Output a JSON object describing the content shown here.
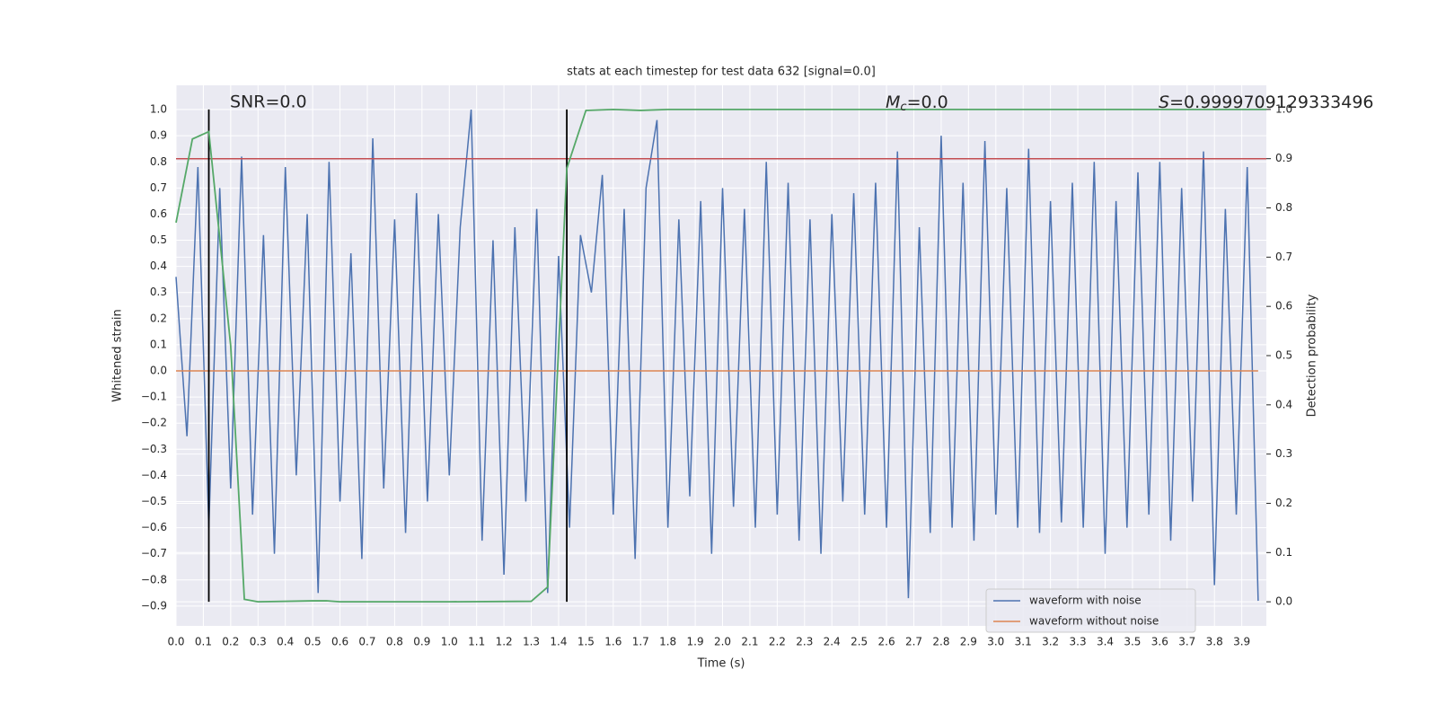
{
  "chart_data": {
    "type": "line",
    "title": "stats at each timestep for test data 632 [signal=0.0]",
    "xlabel": "Time (s)",
    "ylabel": "Whitened strain",
    "y2label": "Detection probability",
    "grid": true,
    "legend_loc": "lower right",
    "xlim": [
      0,
      3.99
    ],
    "ylim": [
      -0.976,
      1.093
    ],
    "y2lim": [
      -0.049,
      1.049
    ],
    "xticks": [
      {
        "value": 0,
        "label": "0.0"
      },
      0.1,
      0.2,
      0.3,
      0.4,
      0.5,
      0.6,
      0.7,
      0.8,
      0.9,
      {
        "value": 1,
        "label": "1.0"
      },
      1.1,
      1.2,
      1.3,
      1.4,
      1.5,
      1.6,
      1.7,
      1.8,
      1.9,
      {
        "value": 2,
        "label": "2.0"
      },
      2.1,
      2.2,
      2.3,
      2.4,
      2.5,
      2.6,
      2.7,
      2.8,
      2.9,
      {
        "value": 3,
        "label": "3.0"
      },
      3.1,
      3.2,
      3.3,
      3.4,
      3.5,
      3.6,
      3.7,
      3.8,
      3.9
    ],
    "yticks": [
      {
        "value": -0.9,
        "label": "−0.9"
      },
      {
        "value": -0.8,
        "label": "−0.8"
      },
      {
        "value": -0.7,
        "label": "−0.7"
      },
      {
        "value": -0.6,
        "label": "−0.6"
      },
      {
        "value": -0.5,
        "label": "−0.5"
      },
      {
        "value": -0.4,
        "label": "−0.4"
      },
      {
        "value": -0.3,
        "label": "−0.3"
      },
      {
        "value": -0.2,
        "label": "−0.2"
      },
      {
        "value": -0.1,
        "label": "−0.1"
      },
      {
        "value": 0,
        "label": "0.0"
      },
      0.1,
      0.2,
      0.3,
      0.4,
      0.5,
      0.6,
      0.7,
      0.8,
      0.9,
      {
        "value": 1,
        "label": "1.0"
      }
    ],
    "y2ticks": [
      {
        "value": 0,
        "label": "0.0"
      },
      0.1,
      0.2,
      0.3,
      0.4,
      0.5,
      0.6,
      0.7,
      0.8,
      0.9,
      {
        "value": 1,
        "label": "1.0"
      }
    ],
    "annotations": {
      "snr": "SNR=0.0",
      "mc": {
        "symbol": "M",
        "subscript": "c",
        "text": "=0.0"
      },
      "s": {
        "symbol": "S",
        "text": "=0.9999709129333496"
      }
    },
    "series": [
      {
        "name": "waveform with noise",
        "color": "#4c72b0",
        "x": [
          0,
          0.04,
          0.08,
          0.12,
          0.16,
          0.2,
          0.24,
          0.28,
          0.32,
          0.36,
          0.4,
          0.44,
          0.48,
          0.52,
          0.56,
          0.6,
          0.64,
          0.68,
          0.72,
          0.76,
          0.8,
          0.84,
          0.88,
          0.92,
          0.96,
          1,
          1.04,
          1.08,
          1.12,
          1.16,
          1.2,
          1.24,
          1.28,
          1.32,
          1.36,
          1.4,
          1.44,
          1.48,
          1.52,
          1.56,
          1.6,
          1.64,
          1.68,
          1.72,
          1.76,
          1.8,
          1.84,
          1.88,
          1.92,
          1.96,
          2,
          2.04,
          2.08,
          2.12,
          2.16,
          2.2,
          2.24,
          2.28,
          2.32,
          2.36,
          2.4,
          2.44,
          2.48,
          2.52,
          2.56,
          2.6,
          2.64,
          2.68,
          2.72,
          2.76,
          2.8,
          2.84,
          2.88,
          2.92,
          2.96,
          3,
          3.04,
          3.08,
          3.12,
          3.16,
          3.2,
          3.24,
          3.28,
          3.32,
          3.36,
          3.4,
          3.44,
          3.48,
          3.52,
          3.56,
          3.6,
          3.64,
          3.68,
          3.72,
          3.76,
          3.8,
          3.84,
          3.88,
          3.92,
          3.96
        ],
        "values": [
          0.36,
          -0.25,
          0.78,
          -0.6,
          0.7,
          -0.45,
          0.82,
          -0.55,
          0.52,
          -0.7,
          0.78,
          -0.4,
          0.6,
          -0.85,
          0.8,
          -0.5,
          0.45,
          -0.72,
          0.89,
          -0.45,
          0.58,
          -0.62,
          0.68,
          -0.5,
          0.6,
          -0.4,
          0.55,
          1.0,
          -0.65,
          0.5,
          -0.78,
          0.55,
          -0.5,
          0.62,
          -0.85,
          0.44,
          -0.6,
          0.52,
          0.3,
          0.75,
          -0.55,
          0.62,
          -0.72,
          0.7,
          0.96,
          -0.6,
          0.58,
          -0.48,
          0.65,
          -0.7,
          0.7,
          -0.52,
          0.62,
          -0.6,
          0.8,
          -0.55,
          0.72,
          -0.65,
          0.58,
          -0.7,
          0.6,
          -0.5,
          0.68,
          -0.55,
          0.72,
          -0.6,
          0.84,
          -0.87,
          0.55,
          -0.62,
          0.9,
          -0.6,
          0.72,
          -0.65,
          0.88,
          -0.55,
          0.7,
          -0.6,
          0.85,
          -0.62,
          0.65,
          -0.58,
          0.72,
          -0.6,
          0.8,
          -0.7,
          0.65,
          -0.6,
          0.76,
          -0.55,
          0.8,
          -0.65,
          0.7,
          -0.5,
          0.84,
          -0.82,
          0.62,
          -0.55,
          0.78,
          -0.88
        ]
      },
      {
        "name": "waveform without noise",
        "color": "#dd8452",
        "x": [
          0,
          3.96
        ],
        "values": [
          0,
          0
        ]
      }
    ],
    "probability": {
      "color": "#55a868",
      "axis": "y2",
      "x": [
        0,
        0.06,
        0.12,
        0.2,
        0.24,
        0.25,
        0.3,
        0.5,
        0.55,
        0.6,
        1.0,
        1.3,
        1.36,
        1.43,
        1.5,
        1.6,
        1.7,
        1.8,
        2.0,
        3.0,
        3.99
      ],
      "values": [
        0.77,
        0.94,
        0.955,
        0.52,
        0.11,
        0.005,
        0.0,
        0.002,
        0.002,
        0.0,
        0.0,
        0.001,
        0.03,
        0.88,
        0.998,
        1.0,
        0.998,
        1.0,
        1.0,
        1.0,
        1.0
      ]
    },
    "threshold": {
      "value": 0.9,
      "color": "#c44e52",
      "axis": "y2"
    },
    "vlines": {
      "x": [
        0.12,
        1.43
      ],
      "ymin": 0,
      "ymax": 1,
      "color": "#000000",
      "axis": "y2"
    }
  }
}
